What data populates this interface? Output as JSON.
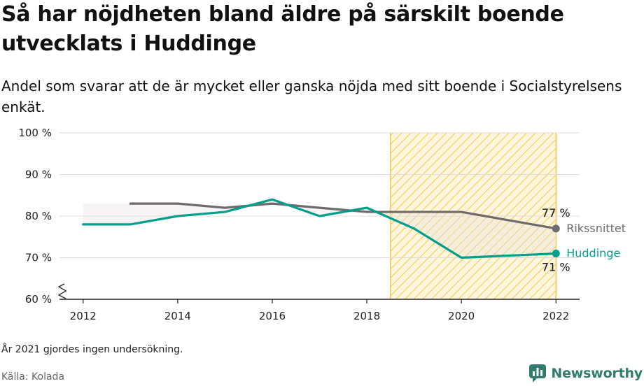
{
  "header": {
    "title": "Så har nöjdheten bland äldre på särskilt boende utvecklats i Huddinge",
    "subtitle": "Andel som svarar att de är mycket eller ganska nöjda med sitt boende i Socialstyrelsens enkät."
  },
  "footer": {
    "note": "År 2021 gjordes ingen undersökning.",
    "source": "Källa: Kolada",
    "brand": "Newsworthy"
  },
  "colors": {
    "huddinge": "#009e8c",
    "riket": "#6e6a6e",
    "highlight": "#f5c84a",
    "grid": "#dddddd"
  },
  "chart_data": {
    "type": "line",
    "y_tick_labels": [
      "60 %",
      "70 %",
      "80 %",
      "90 %",
      "100 %"
    ],
    "y_ticks": [
      60,
      70,
      80,
      90,
      100
    ],
    "x_tick_labels": [
      "2012",
      "2014",
      "2016",
      "2018",
      "2020",
      "2022"
    ],
    "x_ticks": [
      2012,
      2014,
      2016,
      2018,
      2020,
      2022
    ],
    "xlim": [
      2011.5,
      2022.5
    ],
    "ylim": [
      60,
      100
    ],
    "highlight_range": [
      2018.5,
      2022
    ],
    "series": [
      {
        "key": "riket",
        "name": "Rikssnittet",
        "x": [
          2013,
          2014,
          2015,
          2016,
          2017,
          2018,
          2019,
          2020,
          2022
        ],
        "values": [
          83,
          83,
          82,
          83,
          82,
          81,
          81,
          81,
          77
        ],
        "end_label": "77 %"
      },
      {
        "key": "huddinge",
        "name": "Huddinge",
        "x": [
          2012,
          2013,
          2014,
          2015,
          2016,
          2017,
          2018,
          2019,
          2020,
          2022
        ],
        "values": [
          78,
          78,
          80,
          81,
          84,
          80,
          82,
          77,
          70,
          71
        ],
        "end_label": "71 %"
      }
    ]
  }
}
